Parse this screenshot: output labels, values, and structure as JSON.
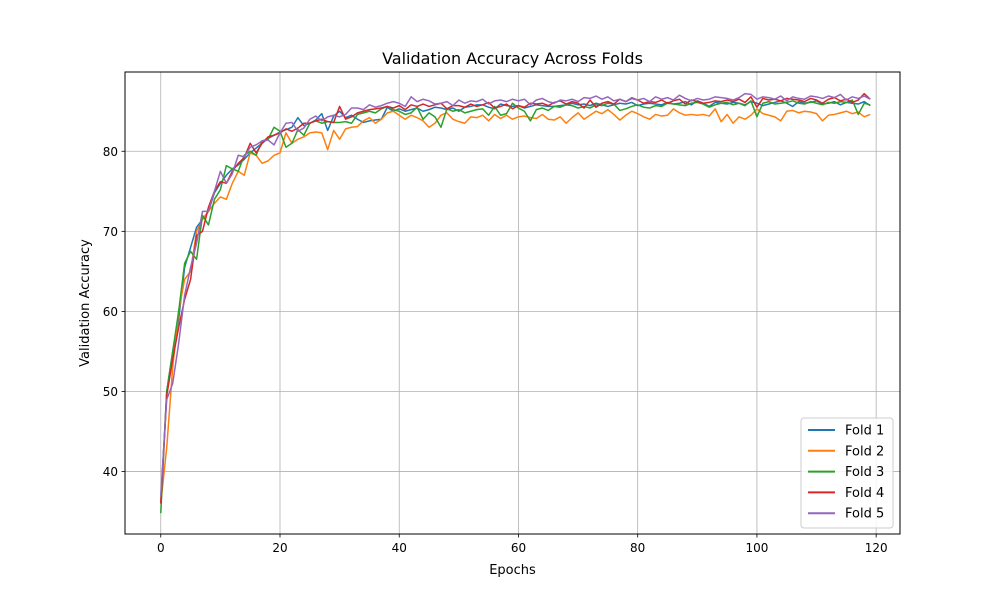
{
  "chart_data": {
    "type": "line",
    "title": "Validation Accuracy Across Folds",
    "xlabel": "Epochs",
    "ylabel": "Validation Accuracy",
    "xlim": [
      -6,
      124
    ],
    "ylim": [
      32.2,
      89.9
    ],
    "xticks": [
      0,
      20,
      40,
      60,
      80,
      100,
      120
    ],
    "yticks": [
      40,
      50,
      60,
      70,
      80
    ],
    "grid": true,
    "legend_position": "lower-right",
    "series": [
      {
        "name": "Fold 1",
        "color": "#1f77b4",
        "values": [
          36.0,
          50.0,
          55.0,
          59.0,
          65.5,
          68.0,
          70.5,
          71.5,
          72.5,
          74.8,
          76.0,
          77.0,
          77.8,
          78.3,
          79.0,
          79.8,
          80.4,
          81.0,
          81.6,
          82.0,
          82.4,
          82.7,
          83.0,
          84.2,
          83.2,
          83.5,
          83.9,
          84.7,
          82.6,
          84.4,
          85.0,
          84.2,
          84.5,
          84.0,
          83.6,
          83.8,
          83.9,
          84.0,
          85.5,
          85.0,
          85.3,
          85.0,
          85.2,
          85.4,
          85.0,
          85.2,
          85.5,
          85.4,
          85.2,
          85.4,
          85.0,
          85.5,
          85.6,
          85.8,
          85.8,
          85.5,
          85.3,
          85.9,
          85.7,
          85.6,
          85.7,
          85.4,
          85.6,
          85.8,
          85.7,
          85.6,
          85.6,
          85.7,
          85.8,
          86.0,
          85.8,
          85.9,
          85.7,
          86.0,
          85.8,
          85.6,
          85.8,
          86.0,
          85.9,
          86.1,
          85.7,
          85.9,
          86.0,
          85.9,
          85.8,
          86.1,
          85.9,
          86.0,
          86.2,
          85.8,
          86.3,
          86.0,
          85.6,
          86.1,
          86.0,
          85.9,
          86.1,
          86.0,
          85.8,
          86.2,
          86.0,
          85.7,
          85.9,
          86.1,
          86.3,
          86.0,
          85.6,
          86.2,
          86.0,
          86.1,
          86.3,
          85.9,
          86.0,
          86.2,
          85.8,
          86.1,
          86.0,
          85.9,
          86.2,
          85.7
        ]
      },
      {
        "name": "Fold 2",
        "color": "#ff7f0e",
        "values": [
          36.0,
          43.0,
          53.0,
          60.0,
          64.0,
          65.0,
          70.0,
          71.5,
          72.5,
          73.5,
          74.3,
          74.0,
          76.0,
          77.5,
          77.0,
          79.8,
          79.5,
          78.5,
          78.8,
          79.5,
          79.8,
          82.3,
          81.0,
          81.5,
          81.8,
          82.3,
          82.4,
          82.3,
          80.2,
          82.6,
          81.5,
          82.8,
          83.0,
          83.1,
          83.8,
          84.2,
          83.5,
          84.0,
          84.8,
          85.0,
          84.5,
          84.0,
          84.5,
          84.2,
          83.8,
          83.0,
          83.5,
          84.5,
          84.8,
          84.0,
          83.7,
          83.5,
          84.3,
          84.2,
          84.5,
          83.8,
          84.6,
          84.1,
          84.5,
          84.0,
          84.3,
          84.4,
          84.2,
          84.1,
          84.6,
          84.0,
          83.9,
          84.3,
          83.5,
          84.2,
          84.8,
          84.0,
          84.5,
          85.0,
          84.7,
          85.2,
          84.6,
          83.9,
          84.5,
          85.0,
          84.7,
          84.3,
          84.0,
          84.6,
          84.4,
          84.5,
          85.3,
          84.8,
          84.5,
          84.6,
          84.5,
          84.6,
          84.4,
          85.3,
          83.7,
          84.6,
          83.5,
          84.3,
          84.0,
          84.5,
          85.3,
          84.7,
          84.5,
          84.3,
          83.8,
          85.0,
          85.1,
          84.8,
          85.0,
          84.9,
          84.7,
          83.8,
          84.5,
          84.6,
          84.8,
          85.0,
          84.7,
          84.9,
          84.3,
          84.6
        ]
      },
      {
        "name": "Fold 3",
        "color": "#2ca02c",
        "values": [
          34.8,
          50.0,
          55.0,
          60.0,
          66.0,
          67.5,
          66.5,
          72.0,
          70.8,
          74.0,
          75.2,
          78.2,
          77.8,
          77.5,
          79.5,
          80.0,
          79.5,
          81.3,
          81.5,
          83.0,
          82.5,
          80.5,
          81.0,
          82.7,
          82.0,
          83.5,
          83.8,
          83.5,
          83.7,
          83.6,
          83.6,
          83.7,
          83.5,
          84.6,
          84.8,
          85.0,
          84.8,
          85.3,
          85.6,
          85.2,
          85.0,
          84.6,
          84.8,
          85.5,
          84.0,
          84.8,
          84.3,
          83.0,
          85.3,
          85.0,
          85.2,
          84.8,
          85.0,
          85.2,
          85.3,
          84.5,
          85.6,
          84.5,
          84.7,
          86.0,
          85.4,
          85.0,
          83.8,
          85.2,
          85.4,
          85.1,
          85.6,
          85.5,
          85.8,
          85.7,
          85.4,
          85.6,
          85.4,
          85.8,
          85.7,
          86.0,
          85.9,
          85.1,
          85.3,
          85.6,
          85.8,
          85.5,
          85.4,
          85.7,
          85.6,
          86.0,
          85.9,
          85.8,
          85.7,
          86.0,
          86.1,
          85.9,
          85.5,
          85.8,
          86.0,
          86.1,
          85.8,
          86.0,
          85.7,
          86.3,
          84.3,
          86.0,
          86.2,
          85.9,
          86.0,
          86.1,
          86.3,
          86.0,
          85.9,
          86.2,
          86.0,
          85.8,
          86.1,
          86.0,
          86.2,
          86.1,
          86.4,
          84.6,
          86.0,
          85.8
        ]
      },
      {
        "name": "Fold 4",
        "color": "#d62728",
        "values": [
          36.0,
          49.5,
          54.0,
          58.0,
          61.5,
          64.0,
          69.5,
          70.0,
          73.0,
          75.0,
          76.2,
          76.0,
          77.5,
          78.5,
          79.2,
          81.0,
          79.8,
          81.0,
          81.8,
          82.0,
          82.3,
          82.8,
          82.5,
          82.9,
          83.5,
          83.5,
          83.8,
          84.0,
          83.7,
          83.6,
          85.6,
          84.0,
          84.3,
          84.8,
          85.0,
          85.2,
          85.3,
          85.4,
          85.6,
          85.4,
          85.7,
          85.2,
          85.8,
          85.6,
          85.9,
          85.6,
          85.8,
          86.0,
          85.3,
          85.7,
          85.7,
          85.5,
          85.9,
          85.6,
          85.8,
          86.1,
          85.4,
          85.6,
          85.9,
          85.3,
          85.7,
          85.5,
          86.0,
          85.9,
          86.0,
          85.7,
          86.1,
          86.3,
          85.9,
          86.2,
          86.0,
          85.4,
          86.4,
          85.5,
          86.0,
          86.2,
          85.9,
          86.5,
          86.2,
          86.6,
          86.4,
          86.0,
          86.2,
          86.1,
          86.4,
          86.0,
          86.3,
          86.5,
          85.9,
          86.4,
          86.2,
          86.0,
          86.1,
          86.3,
          86.2,
          86.4,
          86.2,
          86.5,
          86.1,
          86.8,
          85.5,
          86.6,
          86.4,
          86.5,
          86.3,
          86.6,
          86.5,
          86.4,
          86.2,
          86.6,
          86.4,
          86.0,
          86.5,
          86.7,
          86.3,
          86.5,
          86.1,
          86.4,
          87.2,
          86.5
        ]
      },
      {
        "name": "Fold 5",
        "color": "#9467bd",
        "values": [
          37.0,
          49.0,
          51.0,
          56.0,
          62.0,
          65.5,
          68.5,
          72.5,
          72.5,
          75.0,
          77.5,
          76.0,
          77.2,
          79.5,
          79.3,
          80.5,
          80.8,
          81.3,
          81.4,
          80.8,
          82.3,
          83.5,
          83.6,
          82.5,
          82.9,
          84.0,
          84.4,
          83.8,
          84.3,
          84.5,
          84.3,
          84.6,
          85.4,
          85.4,
          85.2,
          85.8,
          85.5,
          85.7,
          86.0,
          86.2,
          86.0,
          85.6,
          86.8,
          86.2,
          86.5,
          86.3,
          85.9,
          86.0,
          86.2,
          85.7,
          86.4,
          86.0,
          86.3,
          86.2,
          86.5,
          85.9,
          86.3,
          86.4,
          86.2,
          86.5,
          86.3,
          86.5,
          85.8,
          86.4,
          86.6,
          86.2,
          86.0,
          86.4,
          86.3,
          86.5,
          86.2,
          86.7,
          86.6,
          86.9,
          86.5,
          86.8,
          86.3,
          86.5,
          86.2,
          86.7,
          86.4,
          86.6,
          86.2,
          86.8,
          86.5,
          86.7,
          86.4,
          87.0,
          86.6,
          86.3,
          86.6,
          86.4,
          86.5,
          86.8,
          86.7,
          86.6,
          86.4,
          86.7,
          87.2,
          87.1,
          86.5,
          86.8,
          86.7,
          86.5,
          86.9,
          86.3,
          86.8,
          86.6,
          86.5,
          86.9,
          86.8,
          86.6,
          86.9,
          86.7,
          87.1,
          86.4,
          86.8,
          86.6,
          86.9,
          86.5
        ]
      }
    ]
  }
}
